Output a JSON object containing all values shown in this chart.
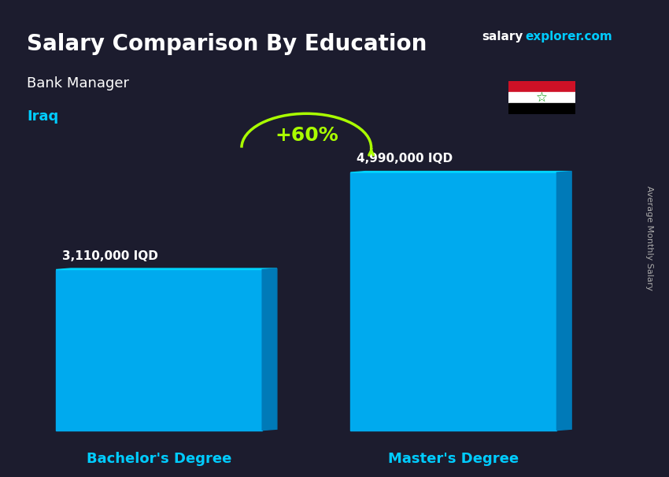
{
  "title_main": "Salary Comparison By Education",
  "title_sub1": "Bank Manager",
  "title_sub2": "Iraq",
  "website": "salary",
  "website2": "explorer.com",
  "ylabel": "Average Monthly Salary",
  "categories": [
    "Bachelor's Degree",
    "Master's Degree"
  ],
  "values": [
    3110000,
    4990000
  ],
  "value_labels": [
    "3,110,000 IQD",
    "4,990,000 IQD"
  ],
  "bar_color_top": "#00d4ff",
  "bar_color_main": "#00aaee",
  "bar_color_side": "#007ab8",
  "pct_label": "+60%",
  "pct_color": "#aaff00",
  "bg_color": "#1a1a2e",
  "title_color": "#ffffff",
  "subtitle_color": "#ffffff",
  "iraq_color": "#00ccff",
  "value_label_color": "#ffffff",
  "xtick_color": "#00ccff",
  "arrow_color": "#aaff00",
  "ylim_max": 6000000
}
